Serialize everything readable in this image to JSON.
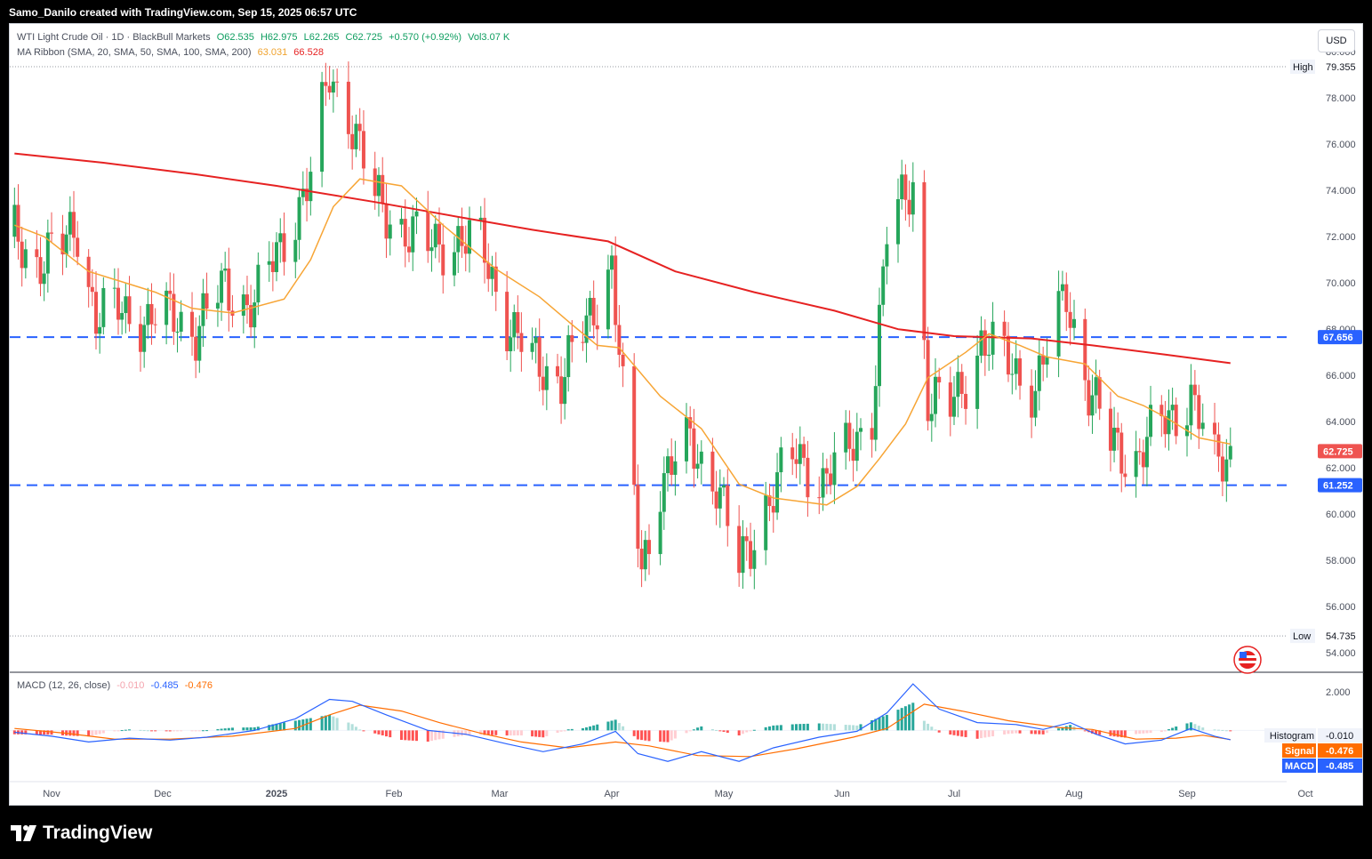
{
  "header": {
    "caption": "Samo_Danilo created with TradingView.com, Sep 15, 2025 06:57 UTC"
  },
  "legend": {
    "symbol": "WTI Light Crude Oil · 1D · BlackBull Markets",
    "open": "O62.535",
    "high": "H62.975",
    "low": "L62.265",
    "close": "C62.725",
    "change": "+0.570 (+0.92%)",
    "volume": "Vol3.07 K",
    "ma_label": "MA Ribbon (SMA, 20, SMA, 50, SMA, 100, SMA, 200)",
    "ma20_value": "63.031",
    "ma200_value": "66.528",
    "macd_label": "MACD (12, 26, close)",
    "macd_hist_value": "-0.010",
    "macd_value": "-0.485",
    "macd_signal_value": "-0.476"
  },
  "toolbar": {
    "currency": "USD"
  },
  "footer": {
    "brand": "TradingView"
  },
  "colors": {
    "up": "#26a65b",
    "down": "#ef5350",
    "ma20": "#f7a535",
    "ma200": "#e62222",
    "level_line": "#2962ff",
    "macd_line": "#2962ff",
    "signal_line": "#ff6d00",
    "hist_pos_strong": "#26a69a",
    "hist_pos_weak": "#b2dfdb",
    "hist_neg_strong": "#ff5252",
    "hist_neg_weak": "#ffcdd2"
  },
  "chart_data": {
    "type": "candlestick",
    "title": "WTI Light Crude Oil · 1D · BlackBull Markets",
    "price_axis": {
      "ticks": [
        "80.000",
        "78.000",
        "76.000",
        "74.000",
        "72.000",
        "70.000",
        "68.000",
        "66.000",
        "64.000",
        "62.000",
        "60.000",
        "58.000",
        "56.000",
        "54.000"
      ],
      "range": [
        53.2,
        81.2
      ]
    },
    "time_axis": {
      "labels": [
        "Nov",
        "Dec",
        "2025",
        "Feb",
        "Mar",
        "Apr",
        "May",
        "Jun",
        "Jul",
        "Aug",
        "Sep",
        "Oct"
      ]
    },
    "markers": {
      "high": {
        "label": "High",
        "value": "79.355"
      },
      "low": {
        "label": "Low",
        "value": "54.735"
      }
    },
    "horizontal_levels": [
      {
        "value": "67.656"
      },
      {
        "value": "61.252"
      }
    ],
    "last_price": {
      "value": "62.725"
    },
    "ma200_points": [
      [
        "2024-10-22",
        75.6
      ],
      [
        "2024-11-15",
        75.2
      ],
      [
        "2024-12-10",
        74.7
      ],
      [
        "2025-01-01",
        74.2
      ],
      [
        "2025-01-27",
        73.5
      ],
      [
        "2025-02-20",
        72.8
      ],
      [
        "2025-03-10",
        72.3
      ],
      [
        "2025-03-31",
        71.8
      ],
      [
        "2025-04-18",
        70.5
      ],
      [
        "2025-05-09",
        69.6
      ],
      [
        "2025-05-30",
        68.8
      ],
      [
        "2025-06-16",
        68.0
      ],
      [
        "2025-07-01",
        67.7
      ],
      [
        "2025-07-21",
        67.6
      ],
      [
        "2025-08-06",
        67.3
      ],
      [
        "2025-08-26",
        66.9
      ],
      [
        "2025-09-12",
        66.53
      ]
    ],
    "ma20_points": [
      [
        "2024-10-22",
        72.5
      ],
      [
        "2024-10-30",
        72.0
      ],
      [
        "2024-11-11",
        70.5
      ],
      [
        "2024-11-29",
        69.6
      ],
      [
        "2024-12-09",
        68.9
      ],
      [
        "2024-12-20",
        68.7
      ],
      [
        "2025-01-03",
        69.3
      ],
      [
        "2025-01-10",
        71.0
      ],
      [
        "2025-01-16",
        73.3
      ],
      [
        "2025-01-23",
        74.5
      ],
      [
        "2025-02-03",
        74.2
      ],
      [
        "2025-02-14",
        72.5
      ],
      [
        "2025-02-28",
        70.6
      ],
      [
        "2025-03-12",
        69.4
      ],
      [
        "2025-03-21",
        68.2
      ],
      [
        "2025-03-28",
        67.3
      ],
      [
        "2025-04-03",
        67.2
      ],
      [
        "2025-04-14",
        65.1
      ],
      [
        "2025-04-25",
        63.7
      ],
      [
        "2025-05-05",
        61.3
      ],
      [
        "2025-05-14",
        60.7
      ],
      [
        "2025-05-28",
        60.4
      ],
      [
        "2025-06-05",
        61.2
      ],
      [
        "2025-06-11",
        62.4
      ],
      [
        "2025-06-18",
        63.9
      ],
      [
        "2025-06-24",
        65.9
      ],
      [
        "2025-07-04",
        67.0
      ],
      [
        "2025-07-10",
        67.8
      ],
      [
        "2025-07-18",
        67.3
      ],
      [
        "2025-07-25",
        66.8
      ],
      [
        "2025-08-04",
        66.5
      ],
      [
        "2025-08-13",
        65.1
      ],
      [
        "2025-08-20",
        64.7
      ],
      [
        "2025-08-26",
        64.2
      ],
      [
        "2025-09-04",
        63.3
      ],
      [
        "2025-09-12",
        63.03
      ]
    ],
    "macd_axis": {
      "ticks": [
        "2.000"
      ],
      "range": [
        -2.6,
        3.0
      ]
    },
    "macd_legend": [
      {
        "label": "Histogram",
        "value": "-0.010"
      },
      {
        "label": "Signal",
        "value": "-0.476"
      },
      {
        "label": "MACD",
        "value": "-0.485"
      }
    ],
    "macd_points": [
      [
        "2024-10-22",
        -0.1
      ],
      [
        "2024-11-01",
        -0.3
      ],
      [
        "2024-11-11",
        -0.6
      ],
      [
        "2024-11-22",
        -0.4
      ],
      [
        "2024-12-03",
        -0.5
      ],
      [
        "2024-12-13",
        -0.35
      ],
      [
        "2024-12-26",
        0.0
      ],
      [
        "2025-01-06",
        0.6
      ],
      [
        "2025-01-15",
        1.6
      ],
      [
        "2025-01-21",
        1.5
      ],
      [
        "2025-01-30",
        0.8
      ],
      [
        "2025-02-10",
        0.0
      ],
      [
        "2025-02-20",
        -0.2
      ],
      [
        "2025-03-03",
        -0.7
      ],
      [
        "2025-03-13",
        -1.1
      ],
      [
        "2025-03-24",
        -0.7
      ],
      [
        "2025-04-02",
        -0.05
      ],
      [
        "2025-04-08",
        -1.2
      ],
      [
        "2025-04-16",
        -1.6
      ],
      [
        "2025-04-25",
        -1.1
      ],
      [
        "2025-05-05",
        -1.6
      ],
      [
        "2025-05-14",
        -0.9
      ],
      [
        "2025-05-26",
        -0.35
      ],
      [
        "2025-06-05",
        -0.05
      ],
      [
        "2025-06-13",
        0.9
      ],
      [
        "2025-06-20",
        2.4
      ],
      [
        "2025-06-27",
        1.1
      ],
      [
        "2025-07-07",
        0.4
      ],
      [
        "2025-07-17",
        0.3
      ],
      [
        "2025-07-24",
        0.05
      ],
      [
        "2025-07-31",
        0.4
      ],
      [
        "2025-08-07",
        -0.2
      ],
      [
        "2025-08-15",
        -0.7
      ],
      [
        "2025-08-25",
        -0.5
      ],
      [
        "2025-09-02",
        0.1
      ],
      [
        "2025-09-08",
        -0.3
      ],
      [
        "2025-09-12",
        -0.485
      ]
    ],
    "signal_points": [
      [
        "2024-10-22",
        0.1
      ],
      [
        "2024-11-05",
        -0.15
      ],
      [
        "2024-11-18",
        -0.45
      ],
      [
        "2024-12-03",
        -0.45
      ],
      [
        "2024-12-20",
        -0.3
      ],
      [
        "2025-01-06",
        0.1
      ],
      [
        "2025-01-15",
        0.8
      ],
      [
        "2025-01-23",
        1.3
      ],
      [
        "2025-02-03",
        1.0
      ],
      [
        "2025-02-13",
        0.4
      ],
      [
        "2025-02-24",
        -0.15
      ],
      [
        "2025-03-07",
        -0.6
      ],
      [
        "2025-03-20",
        -0.9
      ],
      [
        "2025-04-02",
        -0.6
      ],
      [
        "2025-04-11",
        -0.8
      ],
      [
        "2025-04-24",
        -1.3
      ],
      [
        "2025-05-08",
        -1.35
      ],
      [
        "2025-05-20",
        -0.95
      ],
      [
        "2025-06-04",
        -0.35
      ],
      [
        "2025-06-13",
        0.1
      ],
      [
        "2025-06-23",
        1.35
      ],
      [
        "2025-07-03",
        1.0
      ],
      [
        "2025-07-15",
        0.5
      ],
      [
        "2025-07-28",
        0.15
      ],
      [
        "2025-08-06",
        0.05
      ],
      [
        "2025-08-18",
        -0.45
      ],
      [
        "2025-08-29",
        -0.4
      ],
      [
        "2025-09-05",
        -0.25
      ],
      [
        "2025-09-12",
        -0.476
      ]
    ]
  }
}
